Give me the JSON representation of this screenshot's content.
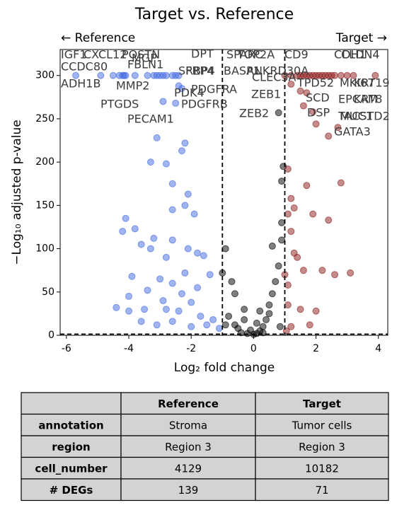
{
  "chart_data": {
    "type": "scatter",
    "title": "Target vs. Reference",
    "annotations": [
      "← Reference",
      "Target →"
    ],
    "x_label": "Log₂ fold change",
    "y_label": "−Log₁₀ adjusted p-value",
    "xlim": [
      -6.2,
      4.3
    ],
    "ylim": [
      0,
      330
    ],
    "xticks": [
      -6,
      -4,
      -2,
      0,
      2,
      4
    ],
    "yticks": [
      0,
      50,
      100,
      150,
      200,
      250,
      300
    ],
    "fc_threshold": [
      -1,
      1
    ],
    "p_threshold": 1.3,
    "series": [
      {
        "color": "#4169e1",
        "x": [
          -5.7,
          -4.9,
          -4.5,
          -4.3,
          -4.2,
          -4.15,
          -4.1,
          -3.8,
          -3.4,
          -3.2,
          -3.1,
          -3.0,
          -2.9,
          -2.8,
          -2.6,
          -2.5,
          -2.4,
          -2.4,
          -2.3,
          -2.9,
          -2.5,
          -3.1,
          -2.2,
          -2.3,
          -3.3,
          -2.8,
          -2.6,
          -2.1,
          -2.2,
          -2.6,
          -1.9,
          -4.1,
          -3.8,
          -4.2,
          -3.2,
          -2.6,
          -3.6,
          -3.3,
          -2.1,
          -1.8,
          -2.8,
          -1.6,
          -3.9,
          -2.2,
          -1.4,
          -2.6,
          -3.4,
          -2.9,
          -4.0,
          -2.0,
          -4.4,
          -3.5,
          -2.4,
          -1.7,
          -3.1,
          -2.6,
          -1.5,
          -2.0,
          -4.0,
          -3.0,
          -1.8,
          -2.3,
          -1.3,
          -1.1,
          -3.6,
          -2.8
        ],
        "y": [
          300,
          300,
          300,
          300,
          300,
          300,
          300,
          300,
          300,
          300,
          300,
          300,
          300,
          300,
          300,
          300,
          300,
          288,
          285,
          270,
          268,
          228,
          222,
          213,
          200,
          198,
          175,
          163,
          150,
          145,
          140,
          135,
          123,
          120,
          112,
          110,
          105,
          100,
          100,
          95,
          90,
          92,
          68,
          72,
          70,
          60,
          52,
          40,
          45,
          38,
          32,
          30,
          28,
          22,
          12,
          16,
          12,
          10,
          28,
          65,
          55,
          48,
          18,
          8,
          16,
          30
        ]
      },
      {
        "color": "#000000",
        "x": [
          -1.0,
          -0.9,
          -0.7,
          -0.6,
          -0.3,
          -0.8,
          -0.9,
          -0.5,
          -0.4,
          -0.2,
          0,
          0.1,
          0.2,
          0.3,
          0.4,
          0.5,
          0.6,
          0.7,
          0.8,
          0.6,
          0.9,
          0.9,
          0.95,
          0.9,
          0.85,
          0.1,
          -0.1,
          0.3,
          -0.6,
          0.5,
          0.8,
          -0.3,
          0.2
        ],
        "y": [
          72,
          100,
          62,
          48,
          30,
          22,
          12,
          8,
          3,
          2,
          1,
          2,
          5,
          10,
          18,
          25,
          48,
          62,
          80,
          103,
          130,
          110,
          195,
          178,
          10,
          14,
          6,
          3,
          12,
          35,
          257,
          18,
          28
        ]
      },
      {
        "color": "#8b1a1a",
        "x": [
          1.0,
          1.2,
          1.4,
          1.5,
          1.6,
          1.7,
          1.8,
          1.9,
          2.0,
          2.1,
          2.2,
          2.3,
          2.4,
          2.5,
          2.6,
          2.8,
          3.0,
          3.2,
          3.9,
          1.2,
          1.5,
          1.7,
          1.6,
          1.9,
          2.0,
          2.7,
          2.4,
          1.1,
          2.8,
          1.7,
          1.2,
          1.3,
          1.1,
          1.9,
          2.4,
          1.2,
          1.4,
          1.0,
          1.6,
          2.2,
          1.1,
          3.1,
          2.6,
          1.5,
          2.0,
          1.1,
          1.2,
          1.8,
          1.05,
          1.3
        ],
        "y": [
          300,
          300,
          300,
          300,
          300,
          300,
          300,
          300,
          300,
          300,
          300,
          300,
          300,
          300,
          300,
          300,
          300,
          300,
          300,
          290,
          282,
          280,
          265,
          258,
          244,
          240,
          230,
          192,
          176,
          173,
          158,
          147,
          140,
          140,
          133,
          120,
          90,
          70,
          75,
          75,
          58,
          72,
          70,
          30,
          28,
          35,
          10,
          12,
          5,
          95
        ]
      }
    ],
    "gene_labels": [
      "IGF1",
      "CXCL12",
      "POSTN",
      "MGP",
      "FBLN1",
      "CCDC80",
      "ADH1B",
      "MMP2",
      "PTGDS",
      "PECAM1",
      "DPT",
      "SFRP4",
      "RBP4",
      "BASP1",
      "PDGFRA",
      "PDK4",
      "PDGFRB",
      "ZEB1",
      "ZEB2",
      "SPARC",
      "TOP2A",
      "ANKRD30A",
      "CLEC3A",
      "CD9",
      "CDH1",
      "CLDN4",
      "TPD52",
      "MKI67",
      "KRT19",
      "SCD",
      "EPCAM",
      "KRT8",
      "DSP",
      "TACSTD2",
      "MUC1",
      "GATA3"
    ]
  },
  "table": {
    "header": [
      "Reference",
      "Target"
    ],
    "rows": [
      [
        "annotation",
        "Stroma",
        "Tumor cells"
      ],
      [
        "region",
        "Region 3",
        "Region 3"
      ],
      [
        "cell_number",
        "4129",
        "10182"
      ],
      [
        "# DEGs",
        "139",
        "71"
      ]
    ]
  }
}
